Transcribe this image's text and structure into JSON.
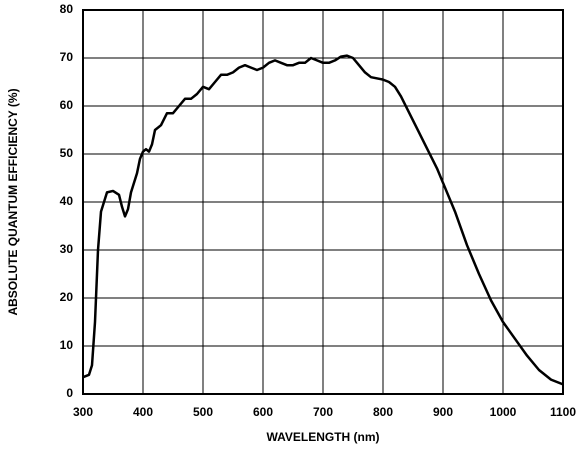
{
  "chart_data": {
    "type": "line",
    "xlabel": "WAVELENGTH (nm)",
    "ylabel": "ABSOLUTE QUANTUM EFFICIENCY (%)",
    "x": [
      300,
      310,
      315,
      320,
      325,
      330,
      340,
      350,
      360,
      365,
      370,
      375,
      380,
      390,
      395,
      400,
      405,
      410,
      415,
      420,
      430,
      440,
      450,
      460,
      470,
      480,
      490,
      500,
      510,
      520,
      530,
      540,
      550,
      560,
      570,
      580,
      590,
      600,
      610,
      620,
      630,
      640,
      650,
      660,
      670,
      680,
      690,
      700,
      710,
      720,
      730,
      740,
      750,
      760,
      770,
      780,
      800,
      810,
      820,
      830,
      850,
      870,
      890,
      900,
      920,
      940,
      960,
      980,
      1000,
      1020,
      1040,
      1060,
      1080,
      1100
    ],
    "values": [
      3.5,
      4,
      6,
      15,
      30,
      38,
      42,
      42.3,
      41.5,
      39,
      37,
      38.5,
      42,
      46,
      49,
      50.5,
      51,
      50.5,
      52,
      55,
      56,
      58.5,
      58.5,
      60,
      61.5,
      61.5,
      62.5,
      64,
      63.5,
      65,
      66.5,
      66.5,
      67,
      68,
      68.5,
      68,
      67.5,
      68,
      69,
      69.5,
      69,
      68.5,
      68.5,
      69,
      69,
      70,
      69.5,
      69,
      69,
      69.5,
      70.3,
      70.5,
      70,
      68.5,
      67,
      66,
      65.5,
      65,
      64,
      62,
      57,
      52,
      47,
      44,
      38,
      31,
      25,
      19.5,
      15,
      11.5,
      8,
      5,
      3,
      2
    ],
    "color": "#000000",
    "xlim": [
      300,
      1100
    ],
    "xticks": [
      300,
      400,
      500,
      600,
      700,
      800,
      900,
      1000,
      1100
    ],
    "ylim": [
      0,
      80
    ],
    "yticks": [
      0,
      10,
      20,
      30,
      40,
      50,
      60,
      70,
      80
    ],
    "grid": true
  }
}
